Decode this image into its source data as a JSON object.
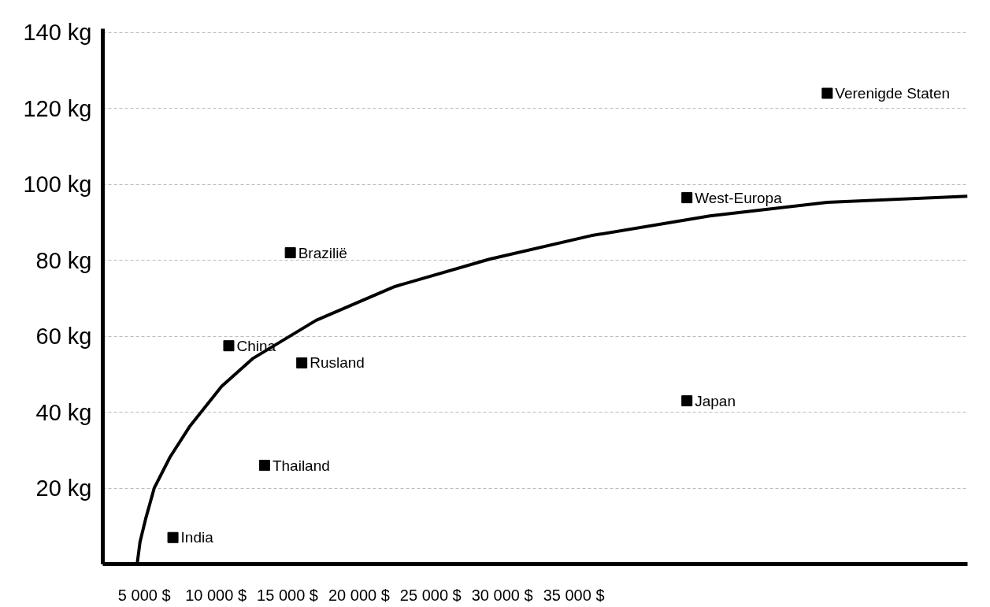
{
  "chart_data": {
    "type": "scatter",
    "xlim": [
      2100,
      62500
    ],
    "ylim": [
      0,
      141
    ],
    "xticks": [
      {
        "value": 5000,
        "label": "5 000 $"
      },
      {
        "value": 10000,
        "label": "10 000 $"
      },
      {
        "value": 15000,
        "label": "15 000 $"
      },
      {
        "value": 20000,
        "label": "20 000 $"
      },
      {
        "value": 25000,
        "label": "25 000 $"
      },
      {
        "value": 30000,
        "label": "30 000 $"
      },
      {
        "value": 35000,
        "label": "35 000 $"
      }
    ],
    "yticks": [
      {
        "value": 20,
        "label": "20 kg"
      },
      {
        "value": 40,
        "label": "40 kg"
      },
      {
        "value": 60,
        "label": "60 kg"
      },
      {
        "value": 80,
        "label": "80 kg"
      },
      {
        "value": 100,
        "label": "100 kg"
      },
      {
        "value": 120,
        "label": "120 kg"
      },
      {
        "value": 140,
        "label": "140 kg"
      }
    ],
    "grid": "y",
    "series": [
      {
        "color": "#000000",
        "marker": "square",
        "x": [
          7000,
          13400,
          10900,
          15200,
          16000,
          42900,
          42900,
          52700
        ],
        "values": [
          7,
          26,
          57.5,
          82,
          53,
          43,
          96.5,
          124
        ]
      },
      {
        "type": "line",
        "color": "#000000",
        "marker": "none",
        "x": [
          4500,
          4700,
          5100,
          5700,
          6800,
          8200,
          10400,
          12600,
          17000,
          22500,
          29100,
          36200,
          44500,
          52700,
          62500
        ],
        "values": [
          0,
          5.8,
          12,
          20.1,
          28.2,
          36.4,
          46.8,
          54.2,
          64.2,
          73.1,
          80.3,
          86.5,
          91.7,
          95.3,
          96.9
        ]
      }
    ],
    "annotations": [
      {
        "text": "India",
        "x": 7000,
        "y": 7
      },
      {
        "text": "Thailand",
        "x": 13400,
        "y": 26
      },
      {
        "text": "China",
        "x": 10900,
        "y": 57.5
      },
      {
        "text": "Brazilië",
        "x": 15200,
        "y": 82
      },
      {
        "text": "Rusland",
        "x": 16000,
        "y": 53
      },
      {
        "text": "Japan",
        "x": 42900,
        "y": 43
      },
      {
        "text": "West-Europa",
        "x": 42900,
        "y": 96.5
      },
      {
        "text": "Verenigde Staten",
        "x": 52700,
        "y": 124
      }
    ]
  }
}
